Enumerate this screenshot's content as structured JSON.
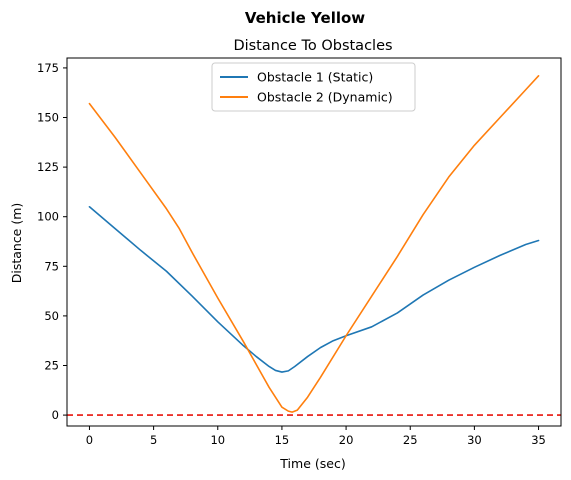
{
  "figure": {
    "suptitle": "Vehicle Yellow"
  },
  "chart_data": {
    "type": "line",
    "title": "Distance To Obstacles",
    "xlabel": "Time (sec)",
    "ylabel": "Distance (m)",
    "xlim": [
      -1.75,
      36.75
    ],
    "ylim": [
      -5.5,
      180
    ],
    "xticks": [
      0,
      5,
      10,
      15,
      20,
      25,
      30,
      35
    ],
    "yticks": [
      0,
      25,
      50,
      75,
      100,
      125,
      150,
      175
    ],
    "grid": false,
    "legend_position": "upper center",
    "series": [
      {
        "name": "Obstacle 1 (Static)",
        "color": "#1f77b4",
        "x": [
          0,
          2,
          4,
          6,
          8,
          10,
          12,
          13,
          14,
          14.5,
          15,
          15.5,
          16,
          17,
          18,
          19,
          20,
          22,
          24,
          26,
          28,
          30,
          32,
          34,
          35
        ],
        "y": [
          105,
          94,
          83,
          72.5,
          60,
          47,
          35,
          29.5,
          24.5,
          22.5,
          21.7,
          22.3,
          24.5,
          29.5,
          34,
          37.5,
          40,
          44.5,
          51.5,
          60.5,
          68,
          74.5,
          80.5,
          86,
          88
        ]
      },
      {
        "name": "Obstacle 2 (Dynamic)",
        "color": "#ff7f0e",
        "x": [
          0,
          2,
          4,
          6,
          7,
          8,
          10,
          12,
          14,
          15,
          15.5,
          15.8,
          16.2,
          17,
          18,
          20,
          22,
          24,
          26,
          28,
          30,
          32,
          34,
          35
        ],
        "y": [
          157,
          140,
          122,
          104,
          94,
          82,
          59,
          37,
          14,
          4,
          2,
          1.5,
          2.5,
          9,
          19,
          40,
          60,
          80,
          101,
          120,
          136,
          150,
          164,
          171
        ]
      },
      {
        "name": "",
        "color": "#e8140c",
        "style": "dashed",
        "x": [
          -1.75,
          36.75
        ],
        "y": [
          0,
          0
        ]
      }
    ]
  }
}
